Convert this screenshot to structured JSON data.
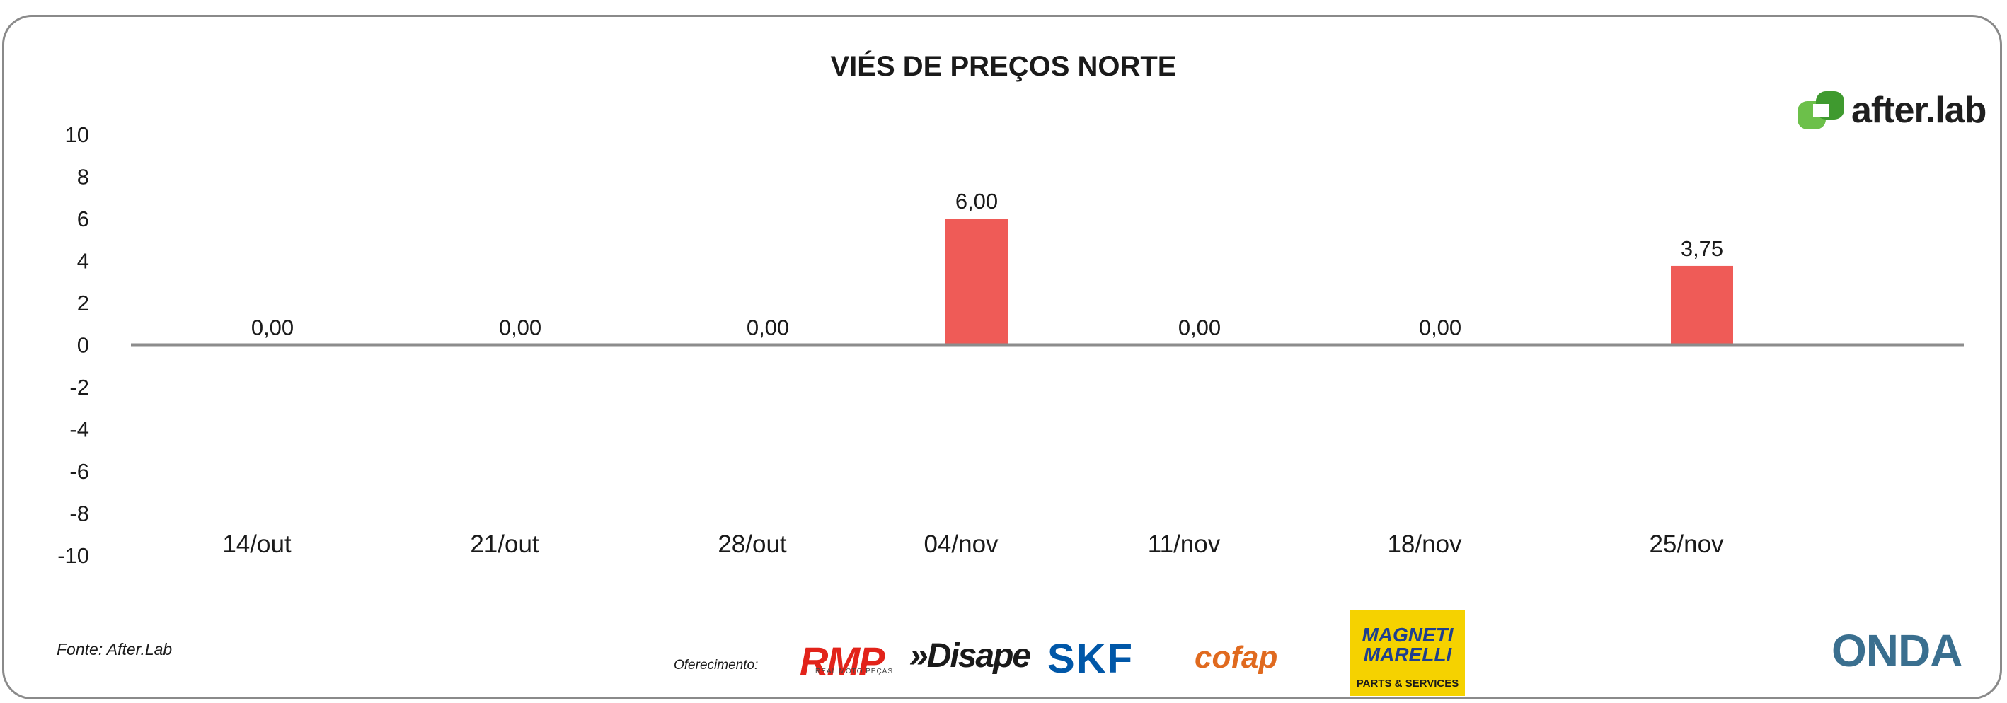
{
  "chart_data": {
    "type": "bar",
    "title": "VIÉS DE PREÇOS NORTE",
    "categories": [
      "14/out",
      "21/out",
      "28/out",
      "04/nov",
      "11/nov",
      "18/nov",
      "25/nov"
    ],
    "values": [
      0.0,
      0.0,
      0.0,
      6.0,
      0.0,
      0.0,
      3.75
    ],
    "data_labels": [
      "0,00",
      "0,00",
      "0,00",
      "6,00",
      "0,00",
      "0,00",
      "3,75"
    ],
    "ylim": [
      -10,
      10
    ],
    "yticks": [
      "10",
      "8",
      "6",
      "4",
      "2",
      "0",
      "-2",
      "-4",
      "-6",
      "-8",
      "-10"
    ],
    "ytick_values": [
      10,
      8,
      6,
      4,
      2,
      0,
      -2,
      -4,
      -6,
      -8,
      -10
    ],
    "grid": false,
    "bar_color": "#ef5b57"
  },
  "brand": {
    "name": "after.lab",
    "accent": "#5ab334"
  },
  "footer": {
    "source": "Fonte: After.Lab",
    "sponsor_label": "Oferecimento:",
    "sponsors": {
      "rmp": "RMP",
      "rmp_sub": "REAL MOTO PEÇAS",
      "disape": "»Disape",
      "skf": "SKF",
      "cofap": "cofap",
      "magneti_line1": "MAGNETI",
      "magneti_line2": "MARELLI",
      "magneti_sub": "PARTS & SERVICES"
    },
    "onda": "ONDA"
  }
}
